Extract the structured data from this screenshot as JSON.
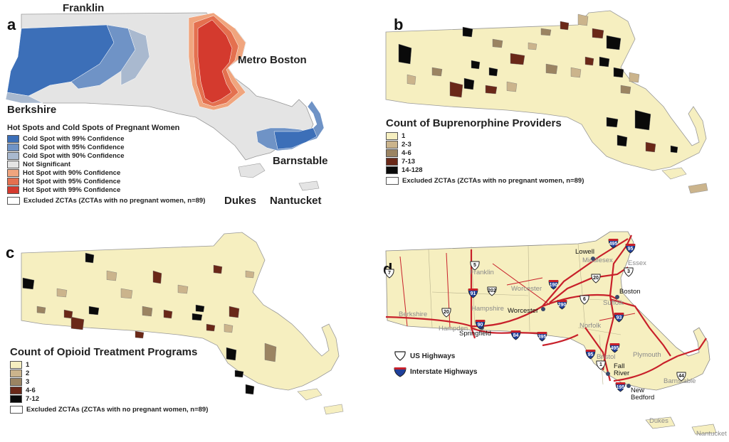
{
  "colors": {
    "cold99": "#3c6fb8",
    "cold95": "#6f93c6",
    "cold90": "#a9b9cf",
    "not_sig": "#e4e4e4",
    "hot90": "#f0a57e",
    "hot95": "#e4704f",
    "hot99": "#d43a2e",
    "excluded": "#ffffff",
    "count1": "#f6efc0",
    "count2": "#cbb48c",
    "count3": "#9b8462",
    "count4": "#6a2818",
    "count5": "#0a0a0a",
    "base_yellow": "#f6efc0",
    "highway_red": "#c8202a",
    "interstate_blue": "#1f3f9a"
  },
  "panel_a": {
    "label": "a",
    "regions": {
      "franklin": "Franklin",
      "metro_boston": "Metro Boston",
      "berkshire": "Berkshire",
      "barnstable": "Barnstable",
      "dukes": "Dukes",
      "nantucket": "Nantucket"
    },
    "legend_title": "Hot Spots and Cold Spots of Pregnant Women",
    "legend": [
      {
        "label": "Cold Spot with 99% Confidence",
        "color": "#3c6fb8"
      },
      {
        "label": "Cold Spot with 95% Confidence",
        "color": "#6f93c6"
      },
      {
        "label": "Cold Spot with 90% Confidence",
        "color": "#a9b9cf"
      },
      {
        "label": "Not Significant",
        "color": "#e4e4e4"
      },
      {
        "label": "Hot Spot with 90% Confidence",
        "color": "#f0a57e"
      },
      {
        "label": "Hot Spot with 95% Confidence",
        "color": "#e4704f"
      },
      {
        "label": "Hot Spot with 99% Confidence",
        "color": "#d43a2e"
      }
    ],
    "excluded": "Excluded ZCTAs (ZCTAs with no pregnant women, n=89)"
  },
  "panel_b": {
    "label": "b",
    "legend_title": "Count of Buprenorphine Providers",
    "legend": [
      {
        "label": "1",
        "color": "#f6efc0"
      },
      {
        "label": "2-3",
        "color": "#cbb48c"
      },
      {
        "label": "4-6",
        "color": "#9b8462"
      },
      {
        "label": "7-13",
        "color": "#6a2818"
      },
      {
        "label": "14-128",
        "color": "#0a0a0a"
      }
    ],
    "excluded": "Excluded ZCTAs (ZCTAs with no pregnant women, n=89)"
  },
  "panel_c": {
    "label": "c",
    "legend_title": "Count of Opioid Treatment Programs",
    "legend": [
      {
        "label": "1",
        "color": "#f6efc0"
      },
      {
        "label": "2",
        "color": "#cbb48c"
      },
      {
        "label": "3",
        "color": "#9b8462"
      },
      {
        "label": "4-6",
        "color": "#6a2818"
      },
      {
        "label": "7-12",
        "color": "#0a0a0a"
      }
    ],
    "excluded": "Excluded ZCTAs (ZCTAs with no pregnant women, n=89)"
  },
  "panel_d": {
    "label": "d",
    "cities": {
      "lowell": "Lowell",
      "boston": "Boston",
      "worcester": "Worcester",
      "springfield": "Springfield",
      "fall_river": "Fall\nRiver",
      "new_bedford": "New\nBedford"
    },
    "counties": {
      "franklin": "Franklin",
      "middlesex": "Middlesex",
      "essex": "Essex",
      "worcester": "Worcester",
      "suffolk": "Suffolk",
      "hampshire": "Hampshire",
      "berkshire": "Berkshire",
      "hampden": "Hampden",
      "norfolk": "Norfolk",
      "bristol": "Bristol",
      "plymouth": "Plymouth",
      "barnstable": "Barnstable",
      "dukes": "Dukes",
      "nantucket": "Nantucket"
    },
    "us_highways": [
      "7",
      "5",
      "202",
      "20",
      "20",
      "3",
      "1",
      "44",
      "6"
    ],
    "interstates": [
      "495",
      "95",
      "91",
      "190",
      "290",
      "93",
      "90",
      "84",
      "395",
      "495",
      "95",
      "195"
    ],
    "legend": {
      "us": "US Highways",
      "interstate": "Interstate Highways"
    }
  }
}
